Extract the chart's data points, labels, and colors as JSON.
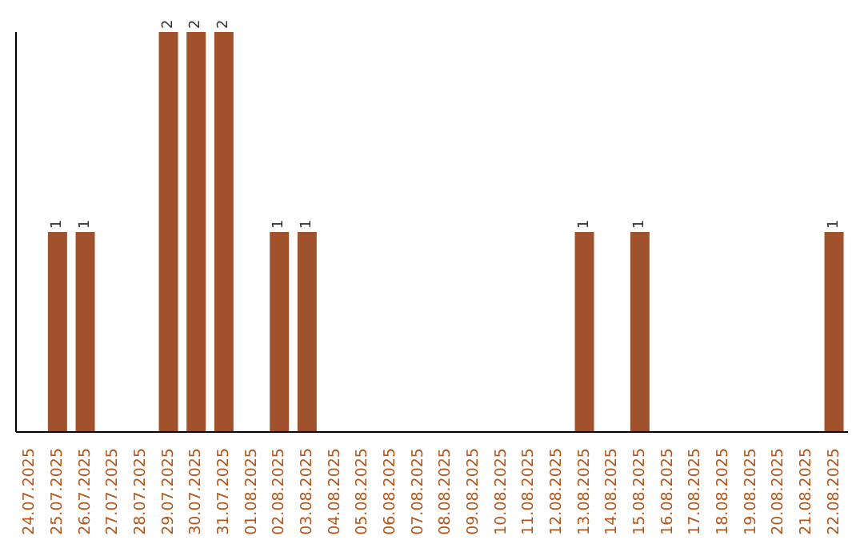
{
  "chart_data": {
    "type": "bar",
    "categories": [
      "24.07.2025",
      "25.07.2025",
      "26.07.2025",
      "27.07.2025",
      "28.07.2025",
      "29.07.2025",
      "30.07.2025",
      "31.07.2025",
      "01.08.2025",
      "02.08.2025",
      "03.08.2025",
      "04.08.2025",
      "05.08.2025",
      "06.08.2025",
      "07.08.2025",
      "08.08.2025",
      "09.08.2025",
      "10.08.2025",
      "11.08.2025",
      "12.08.2025",
      "13.08.2025",
      "14.08.2025",
      "15.08.2025",
      "16.08.2025",
      "17.08.2025",
      "18.08.2025",
      "19.08.2025",
      "20.08.2025",
      "21.08.2025",
      "22.08.2025"
    ],
    "values": [
      0,
      1,
      1,
      0,
      0,
      2,
      2,
      2,
      0,
      1,
      1,
      0,
      0,
      0,
      0,
      0,
      0,
      0,
      0,
      0,
      1,
      0,
      1,
      0,
      0,
      0,
      0,
      0,
      0,
      1
    ],
    "value_labels": [
      null,
      "1",
      "1",
      null,
      null,
      "2",
      "2",
      "2",
      null,
      "1",
      "1",
      null,
      null,
      null,
      null,
      null,
      null,
      null,
      null,
      null,
      "1",
      null,
      "1",
      null,
      null,
      null,
      null,
      null,
      null,
      "1"
    ],
    "color": "#a0522d",
    "ylim": [
      0,
      2
    ],
    "tick_labels": "x"
  }
}
